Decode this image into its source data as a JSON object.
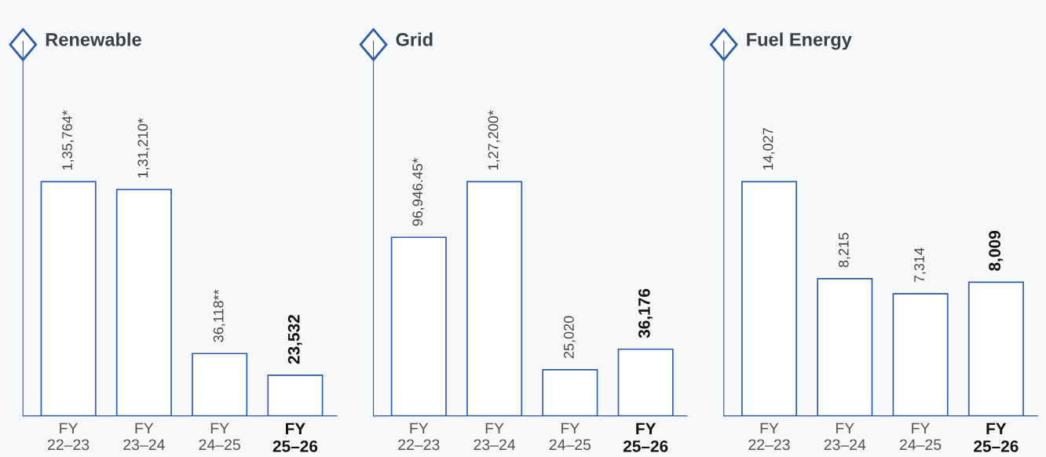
{
  "chart_data": [
    {
      "type": "bar",
      "title": "Renewable",
      "categories": [
        "FY\n22–23",
        "FY\n23–24",
        "FY\n24–25",
        "FY\n25–26"
      ],
      "values": [
        135764,
        131210,
        36118,
        23532
      ],
      "value_labels": [
        "1,35,764*",
        "1,31,210*",
        "36,118**",
        "23,532"
      ],
      "color": "#2b5ca8",
      "grid": false,
      "legend": false
    },
    {
      "type": "bar",
      "title": "Grid",
      "categories": [
        "FY\n22–23",
        "FY\n23–24",
        "FY\n24–25",
        "FY\n25–26"
      ],
      "values": [
        96946.45,
        127200,
        25020,
        36176
      ],
      "value_labels": [
        "96,946.45*",
        "1,27,200*",
        "25,020",
        "36,176"
      ],
      "color": "#2b5ca8",
      "grid": false,
      "legend": false
    },
    {
      "type": "bar",
      "title": "Fuel Energy",
      "categories": [
        "FY\n22–23",
        "FY\n23–24",
        "FY\n24–25",
        "FY\n25–26"
      ],
      "values": [
        14027,
        8215,
        7314,
        8009
      ],
      "value_labels": [
        "14,027",
        "8,215",
        "7,314",
        "8,009"
      ],
      "color": "#2b5ca8",
      "grid": false,
      "legend": false
    }
  ]
}
